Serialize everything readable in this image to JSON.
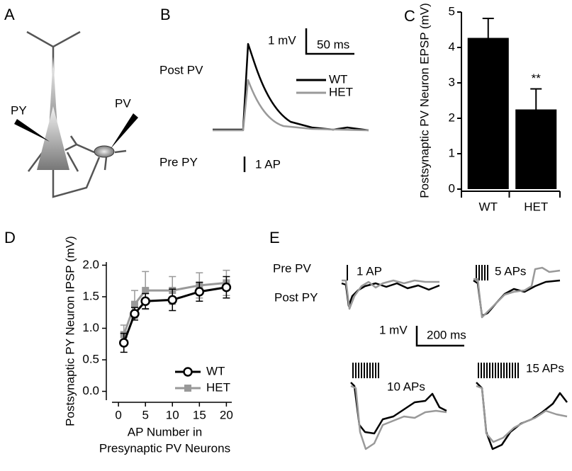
{
  "panel_labels": [
    "A",
    "B",
    "C",
    "D",
    "E"
  ],
  "panel_a": {
    "labels": [
      "PY",
      "PV"
    ]
  },
  "panel_b": {
    "rows": [
      "Post PV",
      "Pre PY"
    ],
    "scale": [
      "1 mV",
      "50 ms"
    ],
    "stimulus": "1 AP",
    "legend": [
      "WT",
      "HET"
    ]
  },
  "panel_e": {
    "rows": [
      "Pre PV",
      "Post PY"
    ],
    "stimuli": [
      "1 AP",
      "5 APs",
      "10 APs",
      "15 APs"
    ],
    "scale": [
      "1 mV",
      "200 ms"
    ]
  },
  "chart_data": [
    {
      "type": "bar",
      "ylabel": "Postsynaptic PV Neuron EPSP (mV)",
      "categories": [
        "WT",
        "HET"
      ],
      "values": [
        4.27,
        2.25
      ],
      "errors": [
        0.55,
        0.58
      ],
      "annotations": [
        null,
        "**"
      ],
      "color": "#000000",
      "ylim": [
        0,
        5
      ],
      "yticks": [
        0,
        1,
        2,
        3,
        4,
        5
      ]
    },
    {
      "type": "line",
      "ylabel": "Postsynaptic PY Neuron IPSP (mV)",
      "xlabel": [
        "AP Number in",
        "Presynaptic PV Neurons"
      ],
      "x": [
        1,
        3,
        5,
        10,
        15,
        20
      ],
      "series": [
        {
          "name": "WT",
          "color": "#000000",
          "marker": "circle",
          "values": [
            0.77,
            1.23,
            1.43,
            1.45,
            1.58,
            1.65
          ],
          "errors": [
            0.15,
            0.1,
            0.12,
            0.17,
            0.15,
            0.17
          ]
        },
        {
          "name": "HET",
          "color": "#999999",
          "marker": "square",
          "values": [
            0.9,
            1.38,
            1.6,
            1.6,
            1.68,
            1.72
          ],
          "errors": [
            0.15,
            0.22,
            0.3,
            0.22,
            0.2,
            0.2
          ]
        }
      ],
      "xlim": [
        -1.2,
        21
      ],
      "ylim": [
        -0.14,
        2.05
      ],
      "xticks": [
        0,
        5,
        10,
        15,
        20
      ],
      "yticks": [
        {
          "value": 0,
          "label": "0.0"
        },
        0.5,
        {
          "value": 1,
          "label": "1.0"
        },
        1.5,
        {
          "value": 2,
          "label": "2.0"
        }
      ],
      "legend": "lower right"
    }
  ]
}
